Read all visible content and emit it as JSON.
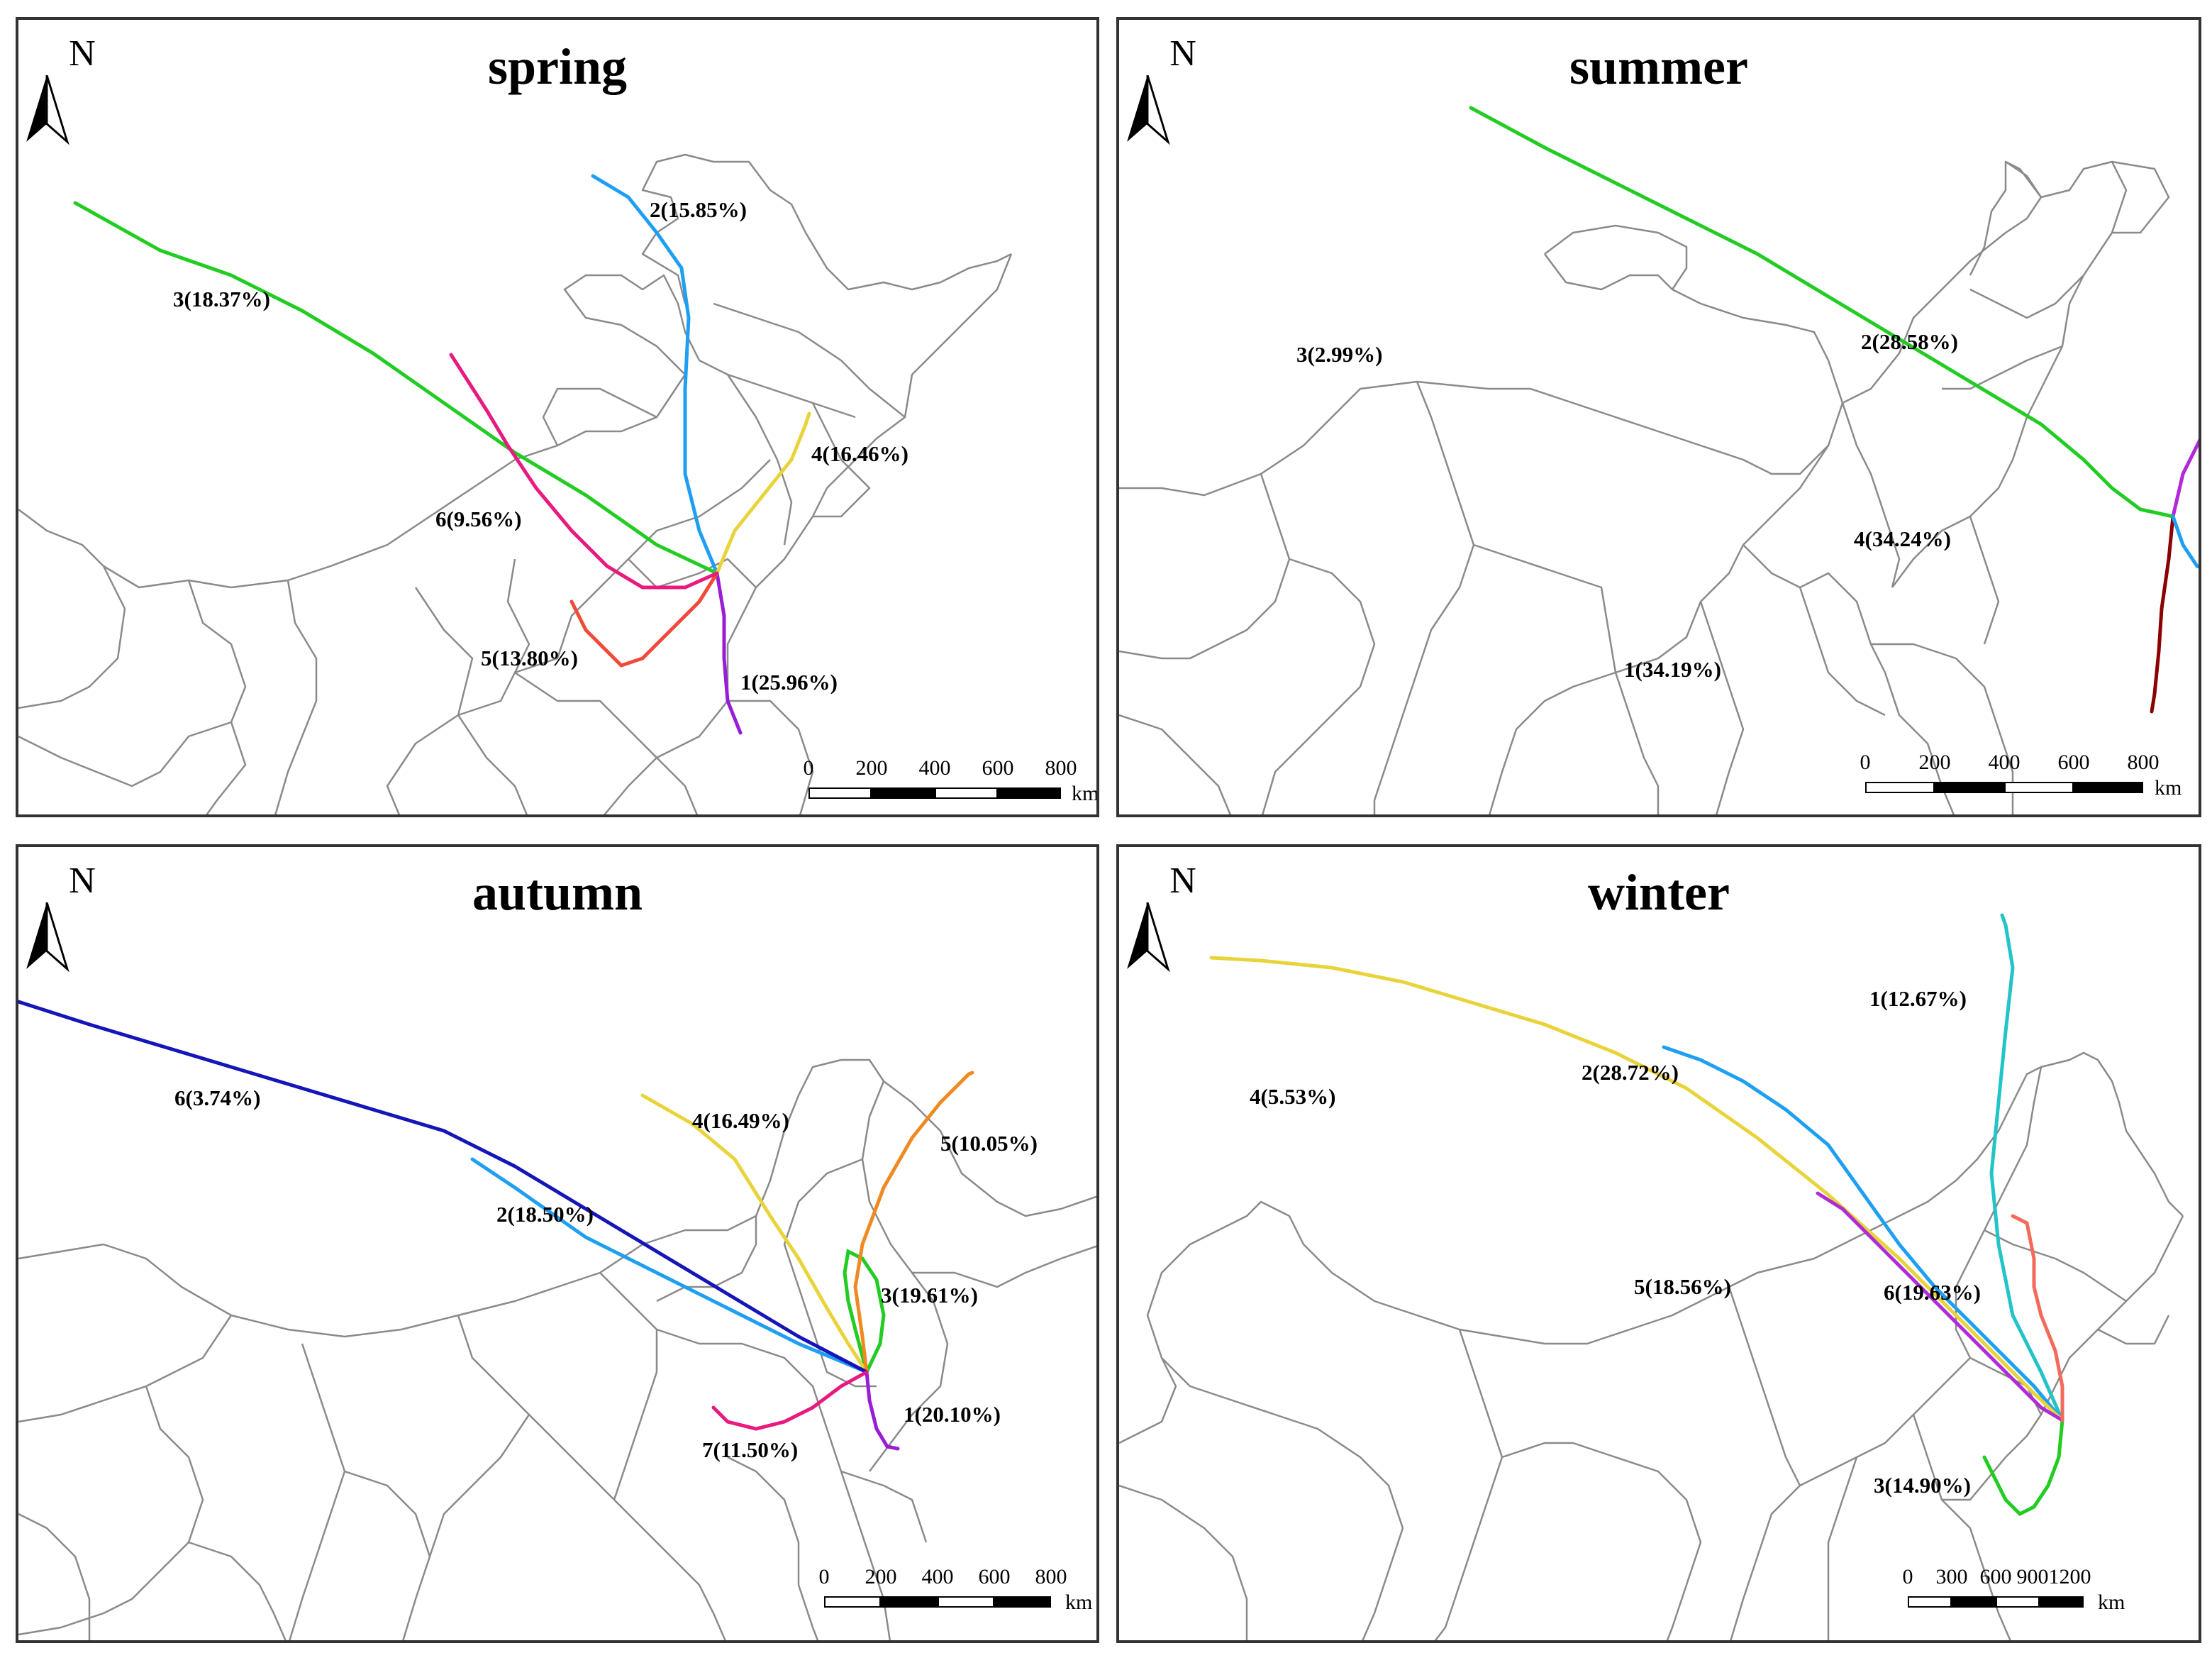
{
  "compass_letter": "N",
  "scale_unit": "km",
  "colors": {
    "border": "#8a8a8a",
    "green": "#22cc22",
    "blue": "#1e9ff2",
    "yellow": "#e8d43a",
    "magenta": "#e8197f",
    "red": "#f04a3a",
    "purple": "#9a1dd6",
    "darkred": "#8b0000",
    "orange": "#ef8a22",
    "navy": "#1616b8",
    "cyan": "#22c4c8",
    "salmon": "#f36a5a",
    "violet": "#b12ad8"
  },
  "panels": [
    {
      "key": "spring",
      "title": "spring",
      "scale_ticks": [
        "0",
        "200",
        "400",
        "600",
        "800"
      ],
      "routes": [
        {
          "label": "1(25.96%)",
          "color": "purple"
        },
        {
          "label": "2(15.85%)",
          "color": "blue"
        },
        {
          "label": "3(18.37%)",
          "color": "green"
        },
        {
          "label": "4(16.46%)",
          "color": "yellow"
        },
        {
          "label": "5(13.80%)",
          "color": "red"
        },
        {
          "label": "6(9.56%)",
          "color": "magenta"
        }
      ]
    },
    {
      "key": "summer",
      "title": "summer",
      "scale_ticks": [
        "0",
        "200",
        "400",
        "600",
        "800"
      ],
      "routes": [
        {
          "label": "1(34.19%)",
          "color": "darkred"
        },
        {
          "label": "2(28.58%)",
          "color": "violet"
        },
        {
          "label": "3(2.99%)",
          "color": "green"
        },
        {
          "label": "4(34.24%)",
          "color": "blue"
        }
      ]
    },
    {
      "key": "autumn",
      "title": "autumn",
      "scale_ticks": [
        "0",
        "200",
        "400",
        "600",
        "800"
      ],
      "routes": [
        {
          "label": "1(20.10%)",
          "color": "purple"
        },
        {
          "label": "2(18.50%)",
          "color": "blue"
        },
        {
          "label": "3(19.61%)",
          "color": "green"
        },
        {
          "label": "4(16.49%)",
          "color": "yellow"
        },
        {
          "label": "5(10.05%)",
          "color": "orange"
        },
        {
          "label": "6(3.74%)",
          "color": "navy"
        },
        {
          "label": "7(11.50%)",
          "color": "magenta"
        }
      ]
    },
    {
      "key": "winter",
      "title": "winter",
      "scale_ticks": [
        "0",
        "300",
        "600",
        "9001200"
      ],
      "routes": [
        {
          "label": "1(12.67%)",
          "color": "cyan"
        },
        {
          "label": "2(28.72%)",
          "color": "blue"
        },
        {
          "label": "3(14.90%)",
          "color": "green"
        },
        {
          "label": "4(5.53%)",
          "color": "yellow"
        },
        {
          "label": "5(18.56%)",
          "color": "violet"
        },
        {
          "label": "6(19.63%)",
          "color": "salmon"
        }
      ]
    }
  ]
}
